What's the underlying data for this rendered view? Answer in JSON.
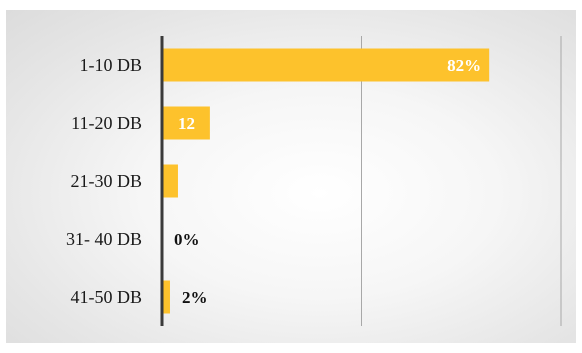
{
  "chart_data": {
    "type": "bar",
    "orientation": "horizontal",
    "categories": [
      "1-10 DB",
      "11-20 DB",
      "21-30 DB",
      "31- 40 DB",
      "41-50 DB"
    ],
    "values": [
      82,
      12,
      4,
      0,
      2
    ],
    "data_labels": [
      "82%",
      "12",
      "",
      "0%",
      "2%"
    ],
    "title": "",
    "xlabel": "",
    "ylabel": "",
    "xlim": [
      0,
      100
    ],
    "grid": "vertical",
    "legend": "none",
    "colors": {
      "bar": "#FDC22C",
      "axis": "#3a3a3a",
      "grid": "#a8a8a8",
      "label_inside": "#ffffff",
      "label_outside": "#111111"
    }
  }
}
